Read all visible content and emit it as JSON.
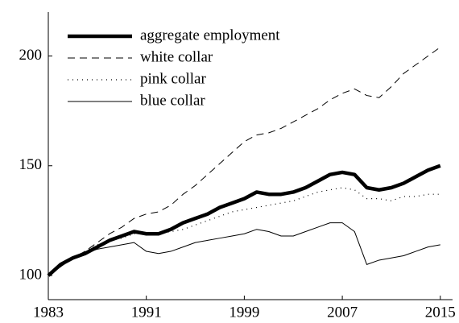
{
  "chart_data": {
    "type": "line",
    "x": [
      1983,
      1984,
      1985,
      1986,
      1987,
      1988,
      1989,
      1990,
      1991,
      1992,
      1993,
      1994,
      1995,
      1996,
      1997,
      1998,
      1999,
      2000,
      2001,
      2002,
      2003,
      2004,
      2005,
      2006,
      2007,
      2008,
      2009,
      2010,
      2011,
      2012,
      2013,
      2014,
      2015
    ],
    "series": [
      {
        "name": "aggregate employment",
        "color": "#000000",
        "style": "thick",
        "values": [
          100,
          105,
          108,
          110,
          113,
          116,
          118,
          120,
          119,
          119,
          121,
          124,
          126,
          128,
          131,
          133,
          135,
          138,
          137,
          137,
          138,
          140,
          143,
          146,
          147,
          146,
          140,
          139,
          140,
          142,
          145,
          148,
          150
        ]
      },
      {
        "name": "white collar",
        "color": "#000000",
        "style": "dashed",
        "values": [
          100,
          104,
          108,
          111,
          115,
          119,
          122,
          126,
          128,
          129,
          132,
          137,
          141,
          146,
          151,
          156,
          161,
          164,
          165,
          167,
          170,
          173,
          176,
          180,
          183,
          185,
          182,
          181,
          186,
          192,
          196,
          200,
          204
        ]
      },
      {
        "name": "pink collar",
        "color": "#000000",
        "style": "dotted",
        "values": [
          100,
          104,
          108,
          111,
          114,
          116,
          117,
          119,
          119,
          119,
          120,
          121,
          123,
          125,
          127,
          129,
          130,
          131,
          132,
          133,
          134,
          136,
          138,
          139,
          140,
          139,
          135,
          135,
          134,
          136,
          136,
          137,
          137
        ]
      },
      {
        "name": "blue collar",
        "color": "#000000",
        "style": "solid",
        "values": [
          100,
          104,
          108,
          110,
          112,
          113,
          114,
          115,
          111,
          110,
          111,
          113,
          115,
          116,
          117,
          118,
          119,
          121,
          120,
          118,
          118,
          120,
          122,
          124,
          124,
          120,
          105,
          107,
          108,
          109,
          111,
          113,
          114
        ]
      }
    ],
    "xlim": [
      1983,
      2016
    ],
    "xticks": [
      1983,
      1991,
      1999,
      2007,
      2015
    ],
    "ylim": [
      89,
      220
    ],
    "yticks": [
      100,
      150,
      200
    ],
    "grid": false,
    "legend": "upper-left"
  }
}
